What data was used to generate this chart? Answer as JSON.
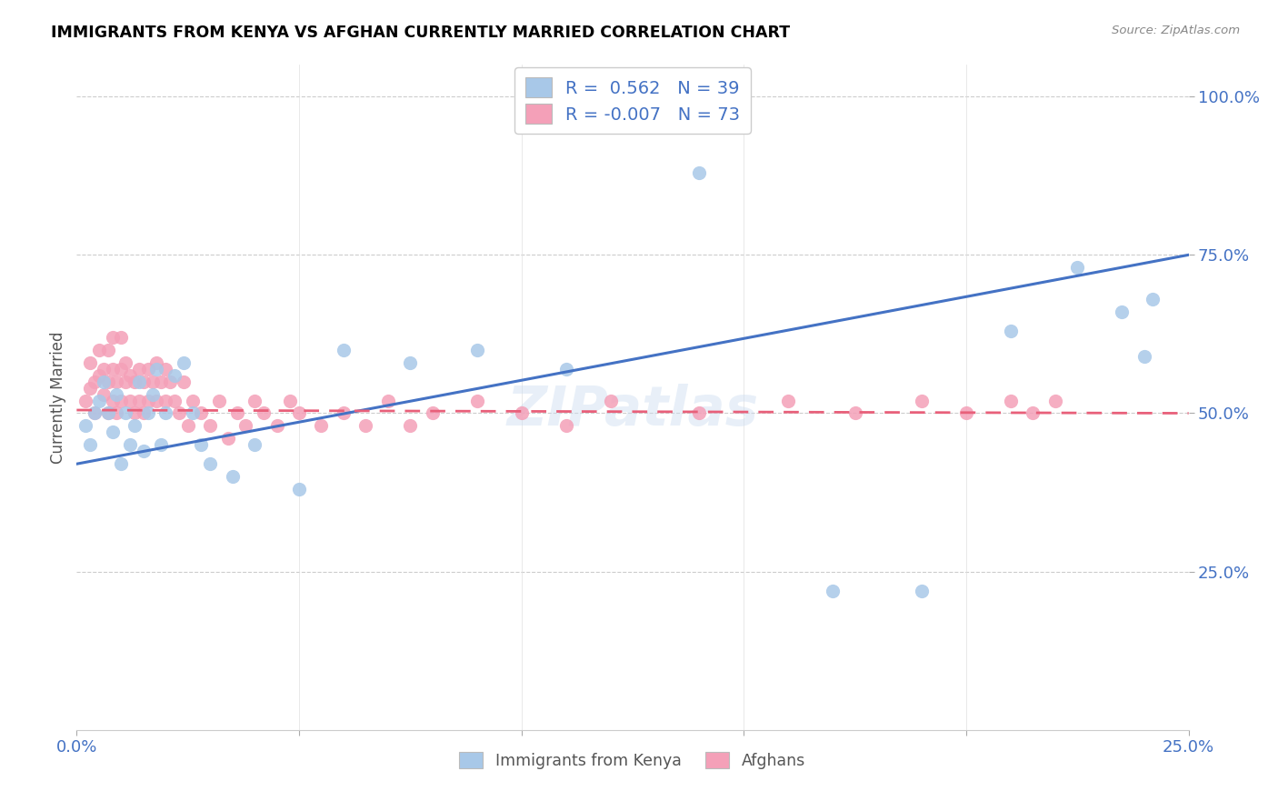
{
  "title": "IMMIGRANTS FROM KENYA VS AFGHAN CURRENTLY MARRIED CORRELATION CHART",
  "source": "Source: ZipAtlas.com",
  "ylabel": "Currently Married",
  "legend_label1": "Immigrants from Kenya",
  "legend_label2": "Afghans",
  "R1": 0.562,
  "N1": 39,
  "R2": -0.007,
  "N2": 73,
  "color_kenya": "#a8c8e8",
  "color_afghan": "#f4a0b8",
  "color_line_kenya": "#4472c4",
  "color_line_afghan": "#e8607a",
  "xlim": [
    0.0,
    0.25
  ],
  "ylim": [
    0.0,
    1.05
  ],
  "kenya_x": [
    0.002,
    0.003,
    0.004,
    0.005,
    0.006,
    0.007,
    0.008,
    0.009,
    0.01,
    0.011,
    0.012,
    0.013,
    0.014,
    0.015,
    0.016,
    0.017,
    0.018,
    0.019,
    0.02,
    0.022,
    0.024,
    0.026,
    0.028,
    0.03,
    0.035,
    0.04,
    0.05,
    0.06,
    0.075,
    0.09,
    0.11,
    0.14,
    0.17,
    0.19,
    0.21,
    0.225,
    0.235,
    0.24,
    0.242
  ],
  "kenya_y": [
    0.48,
    0.45,
    0.5,
    0.52,
    0.55,
    0.5,
    0.47,
    0.53,
    0.42,
    0.5,
    0.45,
    0.48,
    0.55,
    0.44,
    0.5,
    0.53,
    0.57,
    0.45,
    0.5,
    0.56,
    0.58,
    0.5,
    0.45,
    0.42,
    0.4,
    0.45,
    0.38,
    0.6,
    0.58,
    0.6,
    0.57,
    0.88,
    0.22,
    0.22,
    0.63,
    0.73,
    0.66,
    0.59,
    0.68
  ],
  "afghan_x": [
    0.002,
    0.003,
    0.003,
    0.004,
    0.004,
    0.005,
    0.005,
    0.006,
    0.006,
    0.007,
    0.007,
    0.007,
    0.008,
    0.008,
    0.008,
    0.009,
    0.009,
    0.01,
    0.01,
    0.01,
    0.011,
    0.011,
    0.012,
    0.012,
    0.013,
    0.013,
    0.014,
    0.014,
    0.015,
    0.015,
    0.016,
    0.016,
    0.017,
    0.018,
    0.018,
    0.019,
    0.02,
    0.02,
    0.021,
    0.022,
    0.023,
    0.024,
    0.025,
    0.026,
    0.028,
    0.03,
    0.032,
    0.034,
    0.036,
    0.038,
    0.04,
    0.042,
    0.045,
    0.048,
    0.05,
    0.055,
    0.06,
    0.065,
    0.07,
    0.075,
    0.08,
    0.09,
    0.1,
    0.11,
    0.12,
    0.14,
    0.16,
    0.175,
    0.19,
    0.2,
    0.21,
    0.215,
    0.22
  ],
  "afghan_y": [
    0.52,
    0.54,
    0.58,
    0.5,
    0.55,
    0.56,
    0.6,
    0.53,
    0.57,
    0.5,
    0.55,
    0.6,
    0.52,
    0.57,
    0.62,
    0.5,
    0.55,
    0.52,
    0.57,
    0.62,
    0.55,
    0.58,
    0.52,
    0.56,
    0.5,
    0.55,
    0.52,
    0.57,
    0.5,
    0.55,
    0.52,
    0.57,
    0.55,
    0.52,
    0.58,
    0.55,
    0.52,
    0.57,
    0.55,
    0.52,
    0.5,
    0.55,
    0.48,
    0.52,
    0.5,
    0.48,
    0.52,
    0.46,
    0.5,
    0.48,
    0.52,
    0.5,
    0.48,
    0.52,
    0.5,
    0.48,
    0.5,
    0.48,
    0.52,
    0.48,
    0.5,
    0.52,
    0.5,
    0.48,
    0.52,
    0.5,
    0.52,
    0.5,
    0.52,
    0.5,
    0.52,
    0.5,
    0.52
  ],
  "kenya_line_x": [
    0.0,
    0.25
  ],
  "kenya_line_y": [
    0.42,
    0.75
  ],
  "afghan_line_x": [
    0.0,
    0.25
  ],
  "afghan_line_y": [
    0.505,
    0.5
  ]
}
